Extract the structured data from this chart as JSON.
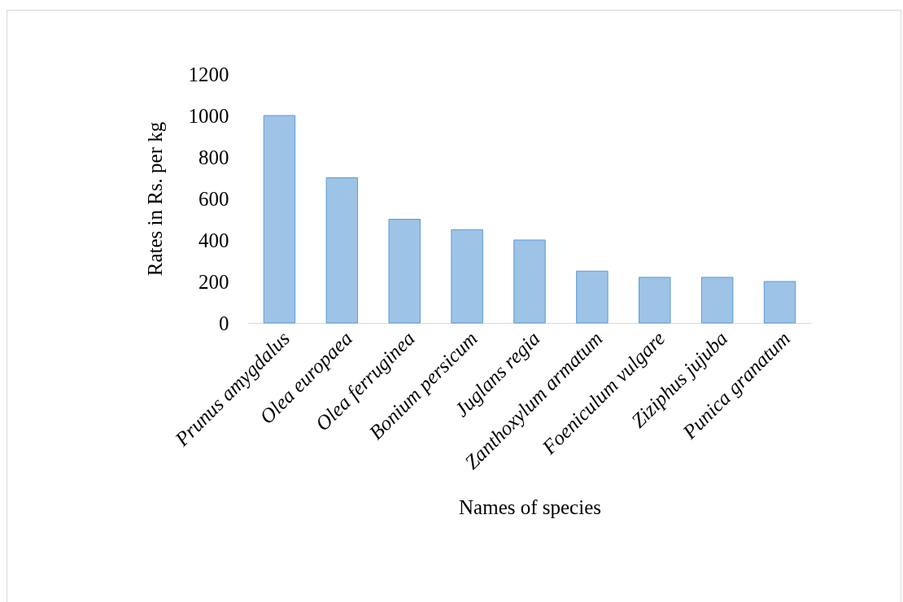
{
  "chart_data": {
    "type": "bar",
    "xlabel": "Names of species",
    "ylabel": "Rates in Rs. per kg",
    "categories": [
      "Prunus amygdalus",
      "Olea europaea",
      "Olea ferruginea",
      "Bonium persicum",
      "Juglans regia",
      "Zanthoxylum armatum",
      "Foeniculum vulgare",
      "Ziziphus jujuba",
      "Punica granatum"
    ],
    "values": [
      1000,
      700,
      500,
      450,
      400,
      250,
      220,
      220,
      200
    ],
    "color": "#9dc3e6",
    "ylim": [
      0,
      1200
    ],
    "yticks": [
      0,
      200,
      400,
      600,
      800,
      1000,
      1200
    ],
    "grid": false,
    "legend": false
  }
}
